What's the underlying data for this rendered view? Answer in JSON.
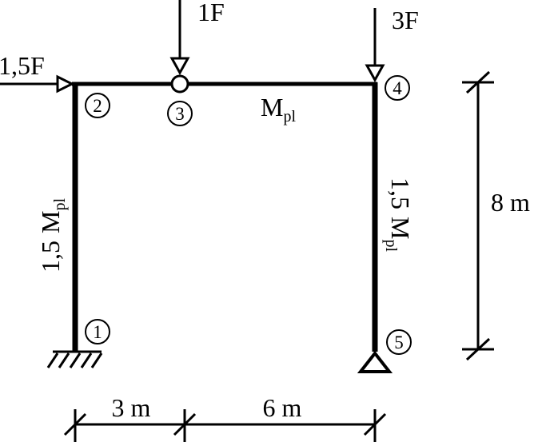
{
  "loads": {
    "horizontal_left": "1,5F",
    "top_middle": "1F",
    "top_right": "3F"
  },
  "members": {
    "left_column": {
      "factor": "1,5",
      "symbol": "M",
      "subscript": "pl"
    },
    "beam": {
      "symbol": "M",
      "subscript": "pl"
    },
    "right_column": {
      "factor": "1,5",
      "symbol": "M",
      "subscript": "pl"
    }
  },
  "nodes": {
    "n1": "1",
    "n2": "2",
    "n3": "3",
    "n4": "4",
    "n5": "5"
  },
  "dimensions": {
    "height": "8 m",
    "span_left": "3 m",
    "span_right": "6 m"
  }
}
